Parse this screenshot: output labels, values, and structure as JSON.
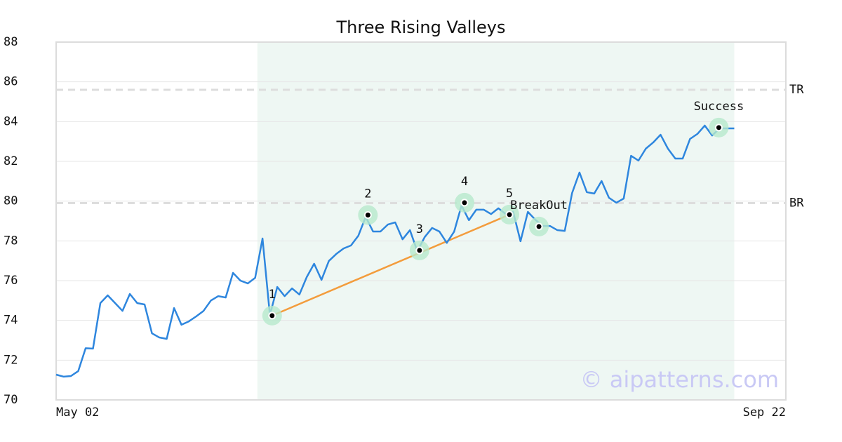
{
  "chart_data": {
    "type": "line",
    "title": "Three Rising Valleys",
    "watermark": "© aipatterns.com",
    "x": [
      0,
      1,
      2,
      3,
      4,
      5,
      6,
      7,
      8,
      9,
      10,
      11,
      12,
      13,
      14,
      15,
      16,
      17,
      18,
      19,
      20,
      21,
      22,
      23,
      24,
      25,
      26,
      27,
      28,
      29,
      30,
      31,
      32,
      33,
      34,
      35,
      36,
      37,
      38,
      39,
      40,
      41,
      42,
      43,
      44,
      45,
      46,
      47,
      48,
      49,
      50,
      51,
      52,
      53,
      54,
      55,
      56,
      57,
      58,
      59,
      60,
      61,
      62,
      63,
      64,
      65,
      66,
      67,
      68,
      69,
      70,
      71,
      72,
      73,
      74,
      75,
      76,
      77,
      78,
      79,
      80,
      81,
      82,
      83,
      84,
      85,
      86,
      87,
      88,
      89,
      90,
      91,
      92
    ],
    "series": [
      {
        "color": "#2e86de",
        "values": [
          71.27,
          71.17,
          71.2,
          71.45,
          72.6,
          72.58,
          74.87,
          75.26,
          74.87,
          74.48,
          75.33,
          74.87,
          74.8,
          73.35,
          73.14,
          73.07,
          74.62,
          73.78,
          73.95,
          74.2,
          74.48,
          75.0,
          75.22,
          75.15,
          76.39,
          76.0,
          75.86,
          76.14,
          78.12,
          74.27,
          75.68,
          75.22,
          75.61,
          75.3,
          76.18,
          76.85,
          76.04,
          76.99,
          77.34,
          77.62,
          77.77,
          78.26,
          79.21,
          78.47,
          78.47,
          78.82,
          78.93,
          78.08,
          78.54,
          77.48,
          78.19,
          78.65,
          78.47,
          77.9,
          78.47,
          79.78,
          79.04,
          79.57,
          79.57,
          79.35,
          79.64,
          79.35,
          79.46,
          77.98,
          79.46,
          79.07,
          78.75,
          78.75,
          78.54,
          78.5,
          80.41,
          81.44,
          80.45,
          80.38,
          81.01,
          80.17,
          79.92,
          80.13,
          82.28,
          82.04,
          82.64,
          82.95,
          83.34,
          82.64,
          82.14,
          82.14,
          83.13,
          83.38,
          83.8,
          83.3,
          83.66,
          83.66,
          83.66
        ]
      }
    ],
    "trend": {
      "color": "#f39c3c",
      "x": [
        29.3,
        61.5
      ],
      "y": [
        74.24,
        79.32
      ]
    },
    "highlight_range": [
      27.3,
      92
    ],
    "highlight_color": "#eef7f3",
    "annotations": [
      {
        "label": "1",
        "x": 29.3,
        "y": 74.24
      },
      {
        "label": "2",
        "x": 42.3,
        "y": 79.3
      },
      {
        "label": "3",
        "x": 49.3,
        "y": 77.52
      },
      {
        "label": "4",
        "x": 55.4,
        "y": 79.92
      },
      {
        "label": "5",
        "x": 61.5,
        "y": 79.32
      },
      {
        "label": "BreakOut",
        "x": 65.5,
        "y": 78.72
      },
      {
        "label": "Success",
        "x": 89.9,
        "y": 83.7
      }
    ],
    "hlines": [
      {
        "label": "TR",
        "value": 85.6
      },
      {
        "label": "BR",
        "value": 79.9
      }
    ],
    "xlim": [
      0,
      99
    ],
    "xticks": [
      {
        "value": 0,
        "label": "May 02"
      },
      {
        "value": 99,
        "label": "Sep 22"
      }
    ],
    "ylim": [
      70,
      88
    ],
    "yticks": [
      70,
      72,
      74,
      76,
      78,
      80,
      82,
      84,
      86,
      88
    ],
    "grid": true
  }
}
